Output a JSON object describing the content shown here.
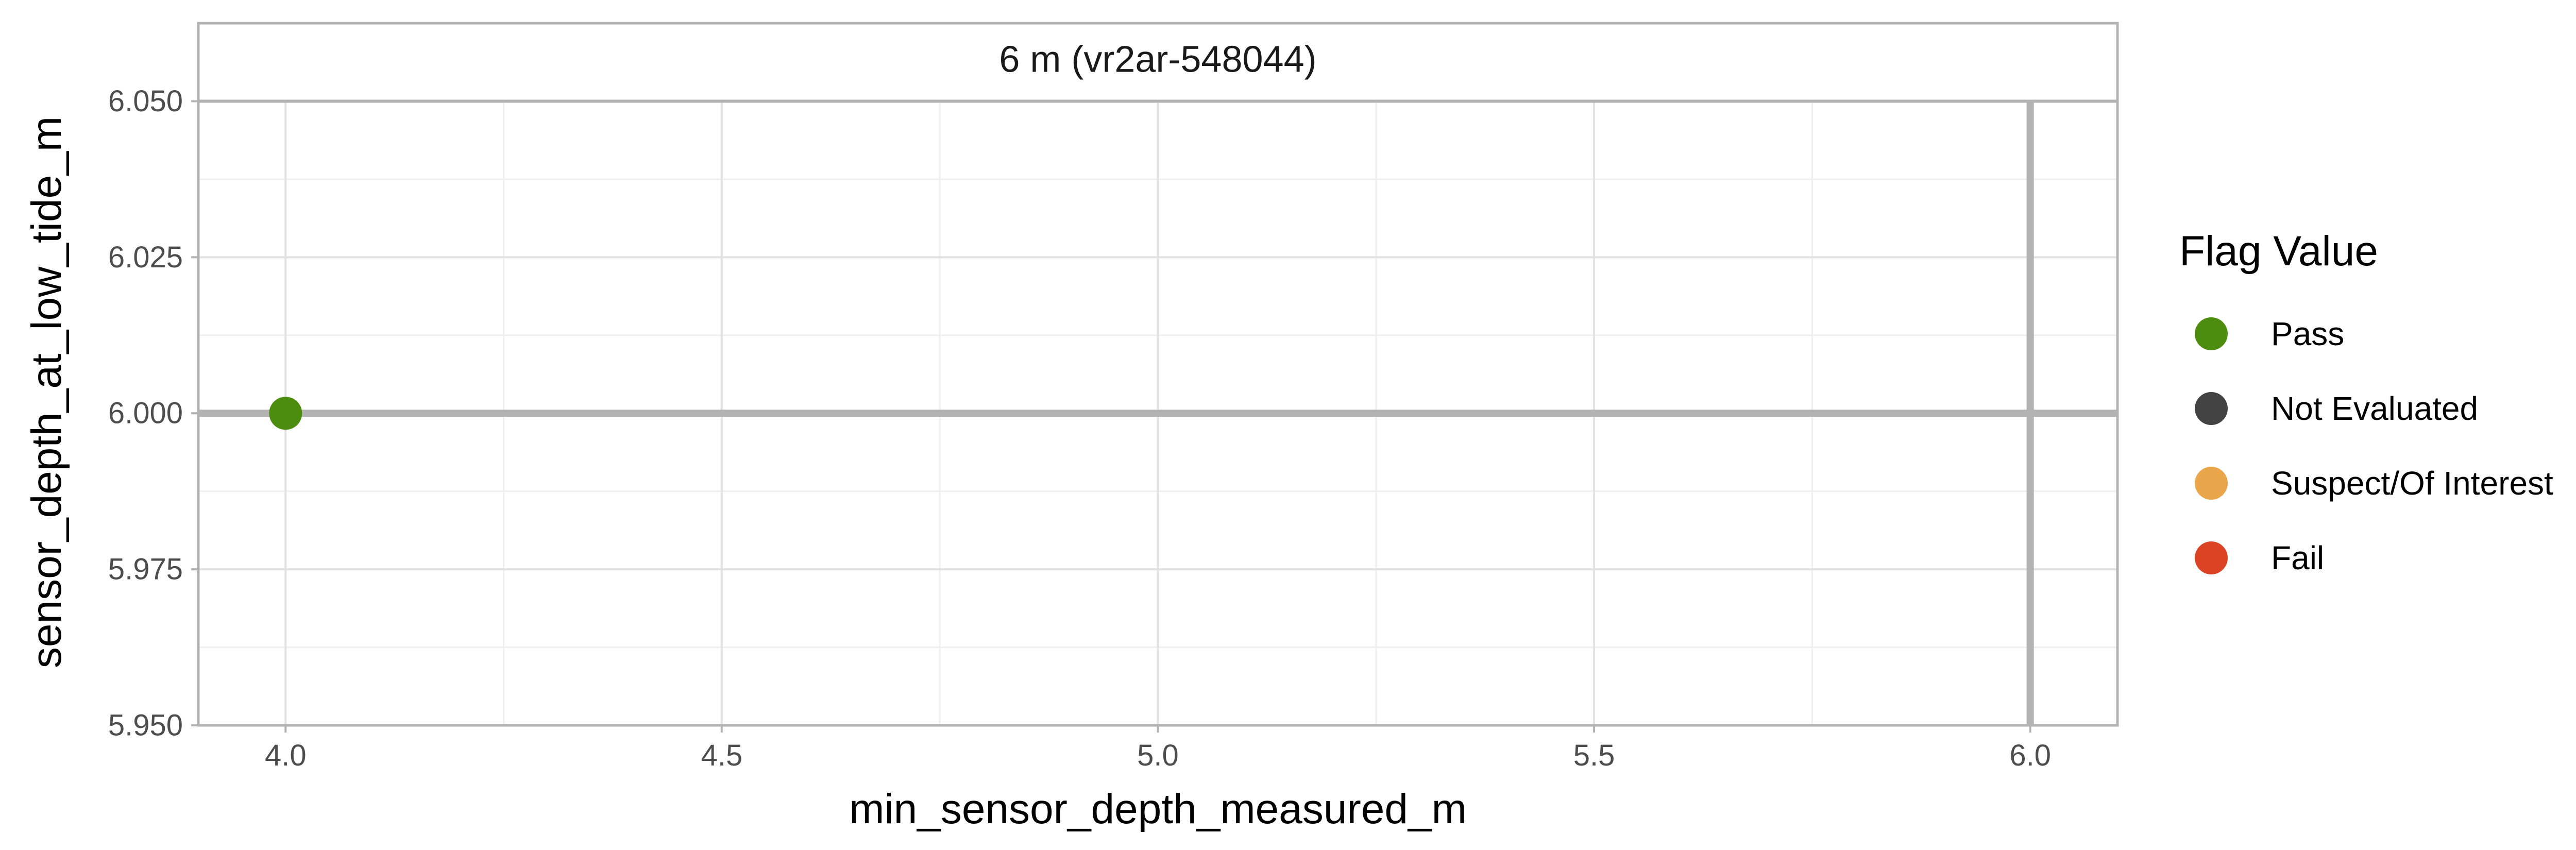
{
  "chart_data": {
    "type": "scatter",
    "panel_title": "6 m (vr2ar-548044)",
    "xlabel": "min_sensor_depth_measured_m",
    "ylabel": "sensor_depth_at_low_tide_m",
    "xlim": [
      3.9,
      6.1
    ],
    "ylim": [
      5.95,
      6.0625
    ],
    "x_ticks": [
      4.0,
      4.5,
      5.0,
      5.5,
      6.0
    ],
    "x_tick_labels": [
      "4.0",
      "4.5",
      "5.0",
      "5.5",
      "6.0"
    ],
    "y_ticks": [
      5.95,
      5.975,
      6.0,
      6.025,
      6.05
    ],
    "y_tick_labels": [
      "5.950",
      "5.975",
      "6.000",
      "6.025",
      "6.050"
    ],
    "reference_lines": {
      "vertical_x": 6.0,
      "horizontal_y": 6.0,
      "strip_boundary_y": 6.05,
      "color": "#b3b3b3"
    },
    "grid": true,
    "legend": {
      "title": "Flag Value",
      "position": "right",
      "items": [
        {
          "label": "Pass",
          "color": "#4c8d10"
        },
        {
          "label": "Not Evaluated",
          "color": "#424242"
        },
        {
          "label": "Suspect/Of Interest",
          "color": "#eba64b"
        },
        {
          "label": "Fail",
          "color": "#db4325"
        }
      ]
    },
    "points": [
      {
        "x": 4.0,
        "y": 6.0,
        "flag": "Pass",
        "color": "#4c8d10"
      }
    ]
  }
}
